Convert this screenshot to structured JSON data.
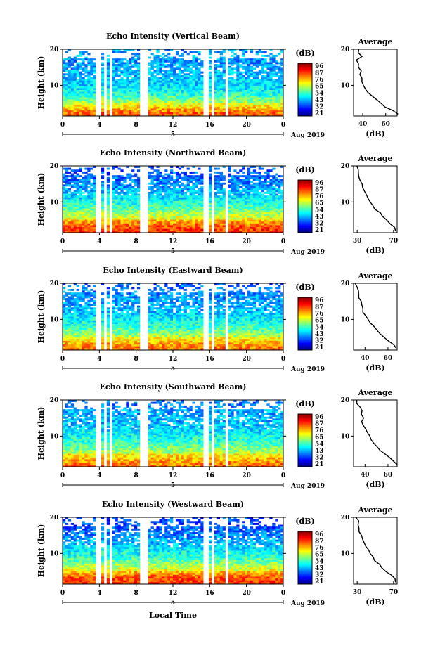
{
  "chart_data": [
    {
      "type": "heatmap",
      "title": "Echo Intensity (Vertical Beam)",
      "ylabel": "Height (km)",
      "yticks": [
        "20",
        "10"
      ],
      "xticks": [
        "0",
        "4",
        "8",
        "12",
        "16",
        "20",
        "0"
      ],
      "date_marker": "5",
      "date_label": "Aug 2019",
      "xlim": [
        0,
        24
      ],
      "ylim": [
        1.5,
        20
      ],
      "gaps_hours": [
        [
          3.7,
          4.1
        ],
        [
          4.6,
          4.8
        ],
        [
          5.1,
          5.4
        ],
        [
          8.4,
          9.2
        ],
        [
          15.4,
          15.8
        ],
        [
          16.3,
          16.5
        ],
        [
          17.6,
          17.9
        ]
      ],
      "colorbar": {
        "label": "(dB)",
        "ticks": [
          "96",
          "87",
          "76",
          "65",
          "54",
          "43",
          "32",
          "21"
        ]
      },
      "profile": {
        "title": "Average",
        "xlabel": "(dB)",
        "xticks": [
          "40",
          "60"
        ],
        "xlim": [
          32,
          70
        ],
        "height_km": [
          20,
          19,
          18,
          17,
          16,
          15,
          14,
          13,
          12,
          11,
          10,
          9,
          8,
          7,
          6,
          5,
          4,
          3,
          2
        ],
        "intensity_db": [
          36,
          36,
          40,
          34,
          36,
          37,
          38,
          38,
          39,
          40,
          40,
          42,
          44,
          48,
          52,
          56,
          60,
          66,
          70
        ]
      }
    },
    {
      "type": "heatmap",
      "title": "Echo Intensity (Northward Beam)",
      "ylabel": "Height (km)",
      "yticks": [
        "20",
        "10"
      ],
      "xticks": [
        "0",
        "4",
        "8",
        "12",
        "16",
        "20",
        "0"
      ],
      "date_marker": "5",
      "date_label": "Aug 2019",
      "xlim": [
        0,
        24
      ],
      "ylim": [
        1.5,
        20
      ],
      "gaps_hours": [
        [
          3.7,
          4.1
        ],
        [
          4.6,
          4.8
        ],
        [
          5.1,
          5.4
        ],
        [
          8.4,
          9.2
        ],
        [
          15.4,
          15.8
        ],
        [
          16.3,
          16.5
        ],
        [
          17.6,
          17.9
        ]
      ],
      "colorbar": {
        "label": "(dB)",
        "ticks": [
          "96",
          "87",
          "76",
          "65",
          "54",
          "43",
          "32",
          "21"
        ]
      },
      "profile": {
        "title": "Average",
        "xlabel": "(dB)",
        "xticks": [
          "30",
          "70"
        ],
        "xlim": [
          26,
          74
        ],
        "height_km": [
          20,
          19,
          18,
          17,
          16,
          15,
          14,
          13,
          12,
          11,
          10,
          9,
          8,
          7,
          6,
          5,
          4,
          3,
          2
        ],
        "intensity_db": [
          29,
          31,
          31,
          32,
          33,
          35,
          36,
          38,
          40,
          42,
          45,
          47,
          50,
          55,
          58,
          62,
          67,
          71,
          73
        ]
      }
    },
    {
      "type": "heatmap",
      "title": "Echo Intensity (Eastward Beam)",
      "ylabel": "Height (km)",
      "yticks": [
        "20",
        "10"
      ],
      "xticks": [
        "0",
        "4",
        "8",
        "12",
        "16",
        "20",
        "0"
      ],
      "date_marker": "5",
      "date_label": "Aug 2019",
      "xlim": [
        0,
        24
      ],
      "ylim": [
        1.5,
        20
      ],
      "gaps_hours": [
        [
          3.7,
          4.1
        ],
        [
          4.6,
          4.8
        ],
        [
          5.1,
          5.4
        ],
        [
          8.4,
          9.2
        ],
        [
          15.4,
          15.8
        ],
        [
          16.3,
          16.5
        ],
        [
          17.6,
          17.9
        ]
      ],
      "colorbar": {
        "label": "(dB)",
        "ticks": [
          "96",
          "87",
          "76",
          "65",
          "54",
          "43",
          "32",
          "21"
        ]
      },
      "profile": {
        "title": "Average",
        "xlabel": "(dB)",
        "xticks": [
          "40",
          "60"
        ],
        "xlim": [
          30,
          68
        ],
        "height_km": [
          20,
          19,
          18,
          17,
          16,
          15,
          14,
          13,
          12,
          11,
          10,
          9,
          8,
          7,
          6,
          5,
          4,
          3,
          2
        ],
        "intensity_db": [
          32,
          33,
          34,
          34,
          35,
          36,
          37,
          38,
          39,
          41,
          43,
          45,
          47,
          50,
          53,
          57,
          61,
          65,
          68
        ]
      }
    },
    {
      "type": "heatmap",
      "title": "Echo Intensity (Southward Beam)",
      "ylabel": "Height (km)",
      "yticks": [
        "20",
        "10"
      ],
      "xticks": [
        "0",
        "4",
        "8",
        "12",
        "16",
        "20",
        "0"
      ],
      "date_marker": "5",
      "date_label": "Aug 2019",
      "xlim": [
        0,
        24
      ],
      "ylim": [
        1.5,
        20
      ],
      "gaps_hours": [
        [
          3.7,
          4.1
        ],
        [
          4.6,
          4.8
        ],
        [
          5.1,
          5.4
        ],
        [
          8.4,
          9.2
        ],
        [
          15.4,
          15.8
        ],
        [
          16.3,
          16.5
        ],
        [
          17.6,
          17.9
        ]
      ],
      "colorbar": {
        "label": "(dB)",
        "ticks": [
          "96",
          "87",
          "76",
          "65",
          "54",
          "43",
          "32",
          "21"
        ]
      },
      "profile": {
        "title": "Average",
        "xlabel": "(dB)",
        "xticks": [
          "40",
          "60"
        ],
        "xlim": [
          30,
          68
        ],
        "height_km": [
          20,
          19,
          18,
          17,
          16,
          15,
          14,
          13,
          12,
          11,
          10,
          9,
          8,
          7,
          6,
          5,
          4,
          3,
          2
        ],
        "intensity_db": [
          32,
          33,
          35,
          37,
          36,
          38,
          38,
          39,
          40,
          42,
          44,
          46,
          48,
          51,
          54,
          58,
          61,
          65,
          68
        ]
      }
    },
    {
      "type": "heatmap",
      "title": "Echo Intensity (Westward Beam)",
      "ylabel": "Height (km)",
      "yticks": [
        "20",
        "10"
      ],
      "xticks": [
        "0",
        "4",
        "8",
        "12",
        "16",
        "20",
        "0"
      ],
      "date_marker": "5",
      "date_label": "Aug 2019",
      "xlim": [
        0,
        24
      ],
      "ylim": [
        1.5,
        20
      ],
      "gaps_hours": [
        [
          3.7,
          4.1
        ],
        [
          4.6,
          4.8
        ],
        [
          5.1,
          5.4
        ],
        [
          8.4,
          9.2
        ],
        [
          15.4,
          15.8
        ],
        [
          16.3,
          16.5
        ],
        [
          17.6,
          17.9
        ]
      ],
      "colorbar": {
        "label": "(dB)",
        "ticks": [
          "96",
          "87",
          "76",
          "65",
          "54",
          "43",
          "32",
          "21"
        ]
      },
      "profile": {
        "title": "Average",
        "xlabel": "(dB)",
        "xticks": [
          "30",
          "70"
        ],
        "xlim": [
          26,
          74
        ],
        "height_km": [
          20,
          19,
          18,
          17,
          16,
          15,
          14,
          13,
          12,
          11,
          10,
          9,
          8,
          7,
          6,
          5,
          4,
          3,
          2
        ],
        "intensity_db": [
          29,
          31,
          30,
          31,
          33,
          34,
          36,
          38,
          40,
          42,
          44,
          47,
          50,
          55,
          58,
          62,
          67,
          71,
          73
        ]
      }
    }
  ],
  "shared_xlabel": "Local Time"
}
